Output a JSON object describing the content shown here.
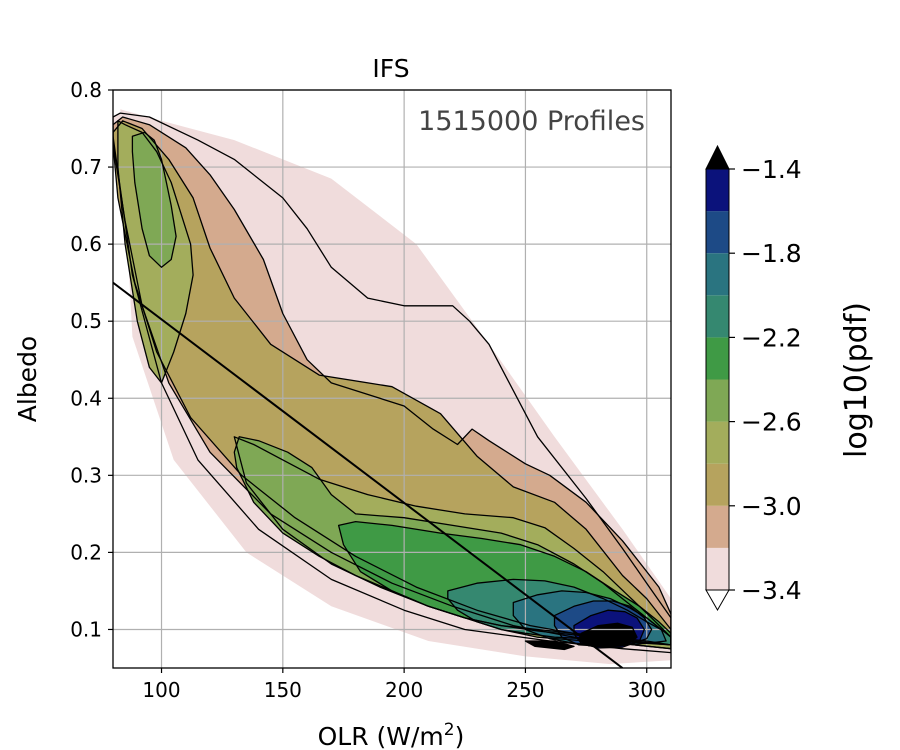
{
  "chart_data": {
    "type": "contour",
    "title": "IFS",
    "annotation": "1515000 Profiles",
    "xlabel": "OLR (W/m",
    "xlabel_sup": "2",
    "xlabel_end": ")",
    "ylabel": "Albedo",
    "xlim": [
      80,
      310
    ],
    "ylim": [
      0.05,
      0.8
    ],
    "x_ticks": [
      100,
      150,
      200,
      250,
      300
    ],
    "y_ticks": [
      0.1,
      0.2,
      0.3,
      0.4,
      0.5,
      0.6,
      0.7,
      0.8
    ],
    "x_tick_labels": [
      "100",
      "150",
      "200",
      "250",
      "300"
    ],
    "y_tick_labels": [
      "0.1",
      "0.2",
      "0.3",
      "0.4",
      "0.5",
      "0.6",
      "0.7",
      "0.8"
    ],
    "grid": true,
    "colorbar": {
      "label": "log10(pdf)",
      "levels": [
        -3.4,
        -3.2,
        -3.0,
        -2.8,
        -2.6,
        -2.4,
        -2.2,
        -2.0,
        -1.8,
        -1.6,
        -1.4
      ],
      "tick_values": [
        -3.4,
        -3.0,
        -2.6,
        -2.2,
        -1.8,
        -1.4
      ],
      "tick_labels": [
        "−3.4",
        "−3.0",
        "−2.6",
        "−2.2",
        "−1.8",
        "−1.4"
      ],
      "colors": [
        "#f0dcdc",
        "#d4aa8e",
        "#b6a35e",
        "#a3ad5c",
        "#7fa855",
        "#3f9a45",
        "#358870",
        "#2a7480",
        "#1d4a86",
        "#0b127b"
      ],
      "extend": "both",
      "over_color": "#000000",
      "under_color": "#ffffff"
    },
    "contour_levels": [
      {
        "level": -3.4,
        "color": "#f0dcdc",
        "outline": false,
        "x": [
          83,
          100,
          130,
          170,
          205,
          235,
          262,
          290,
          310,
          310,
          285,
          250,
          210,
          170,
          135,
          105,
          88
        ],
        "y": [
          0.775,
          0.76,
          0.735,
          0.685,
          0.6,
          0.47,
          0.35,
          0.23,
          0.14,
          0.06,
          0.055,
          0.065,
          0.085,
          0.13,
          0.2,
          0.32,
          0.48
        ]
      },
      {
        "level": -3.2,
        "color": "#f0dcdc",
        "outline": true,
        "x": [
          80,
          83,
          95,
          115,
          130,
          150,
          160,
          170,
          185,
          200,
          220,
          227,
          235,
          245,
          255,
          275,
          290,
          300,
          310,
          310,
          290,
          260,
          225,
          200,
          170,
          140,
          115,
          100,
          88,
          80
        ],
        "y": [
          0.765,
          0.77,
          0.765,
          0.735,
          0.71,
          0.66,
          0.62,
          0.57,
          0.53,
          0.52,
          0.52,
          0.5,
          0.47,
          0.41,
          0.35,
          0.27,
          0.205,
          0.16,
          0.115,
          0.07,
          0.075,
          0.085,
          0.1,
          0.125,
          0.165,
          0.23,
          0.32,
          0.42,
          0.56,
          0.74
        ]
      },
      {
        "level": -3.0,
        "color": "#d4aa8e",
        "outline": true,
        "x": [
          80,
          84,
          95,
          110,
          120,
          130,
          142,
          150,
          160,
          170,
          200,
          212,
          222,
          228,
          235,
          250,
          260,
          275,
          290,
          305,
          310,
          310,
          295,
          270,
          245,
          220,
          195,
          170,
          145,
          120,
          103,
          92,
          85,
          80
        ],
        "y": [
          0.755,
          0.765,
          0.755,
          0.725,
          0.69,
          0.645,
          0.58,
          0.51,
          0.45,
          0.42,
          0.39,
          0.36,
          0.34,
          0.36,
          0.345,
          0.315,
          0.3,
          0.265,
          0.215,
          0.155,
          0.12,
          0.075,
          0.08,
          0.09,
          0.105,
          0.13,
          0.16,
          0.2,
          0.25,
          0.33,
          0.42,
          0.52,
          0.63,
          0.73
        ]
      },
      {
        "level": -2.8,
        "color": "#b6a35e",
        "outline": true,
        "x": [
          80,
          84,
          92,
          103,
          113,
          120,
          130,
          145,
          165,
          195,
          215,
          230,
          245,
          262,
          275,
          290,
          300,
          310,
          310,
          295,
          275,
          252,
          230,
          205,
          180,
          155,
          133,
          112,
          98,
          89,
          82,
          80
        ],
        "y": [
          0.745,
          0.76,
          0.75,
          0.71,
          0.66,
          0.595,
          0.53,
          0.47,
          0.43,
          0.415,
          0.38,
          0.325,
          0.285,
          0.265,
          0.23,
          0.17,
          0.14,
          0.1,
          0.08,
          0.085,
          0.092,
          0.105,
          0.125,
          0.155,
          0.195,
          0.245,
          0.3,
          0.375,
          0.46,
          0.55,
          0.66,
          0.73
        ]
      },
      {
        "level": -2.6,
        "color": "#a3ad5c",
        "outline": true,
        "x": [
          82,
          85,
          92,
          98,
          104,
          108,
          112,
          113,
          110,
          105,
          100,
          95,
          90,
          85,
          82
        ],
        "y": [
          0.76,
          0.755,
          0.745,
          0.72,
          0.68,
          0.64,
          0.6,
          0.56,
          0.51,
          0.46,
          0.42,
          0.44,
          0.5,
          0.6,
          0.7
        ]
      },
      {
        "level": -2.6,
        "color": "#a3ad5c",
        "outline": true,
        "x": [
          130,
          138,
          150,
          165,
          185,
          205,
          225,
          245,
          258,
          270,
          282,
          292,
          302,
          310,
          310,
          295,
          275,
          255,
          240,
          225,
          210,
          190,
          170,
          150,
          135
        ],
        "y": [
          0.35,
          0.34,
          0.32,
          0.295,
          0.275,
          0.26,
          0.25,
          0.245,
          0.232,
          0.205,
          0.175,
          0.145,
          0.115,
          0.09,
          0.075,
          0.08,
          0.085,
          0.09,
          0.1,
          0.115,
          0.13,
          0.155,
          0.185,
          0.23,
          0.29
        ]
      },
      {
        "level": -2.4,
        "color": "#7fa855",
        "outline": true,
        "x": [
          88,
          93,
          97,
          100,
          102,
          104,
          106,
          104,
          100,
          95,
          92,
          89,
          88
        ],
        "y": [
          0.74,
          0.745,
          0.735,
          0.71,
          0.68,
          0.65,
          0.61,
          0.58,
          0.57,
          0.585,
          0.62,
          0.68,
          0.72
        ]
      },
      {
        "level": -2.4,
        "color": "#7fa855",
        "outline": true,
        "x": [
          130,
          132,
          140,
          152,
          162,
          170,
          180,
          200,
          220,
          240,
          255,
          270,
          282,
          292,
          300,
          308,
          310,
          310,
          300,
          285,
          270,
          255,
          240,
          225,
          210,
          195,
          180,
          165,
          150,
          138,
          131
        ],
        "y": [
          0.33,
          0.35,
          0.345,
          0.33,
          0.31,
          0.275,
          0.25,
          0.245,
          0.235,
          0.225,
          0.21,
          0.185,
          0.16,
          0.135,
          0.115,
          0.095,
          0.09,
          0.08,
          0.085,
          0.09,
          0.095,
          0.1,
          0.105,
          0.115,
          0.13,
          0.15,
          0.17,
          0.195,
          0.225,
          0.265,
          0.31
        ]
      },
      {
        "level": -2.2,
        "color": "#3f9a45",
        "outline": true,
        "x": [
          173,
          180,
          195,
          215,
          232,
          248,
          262,
          275,
          287,
          297,
          305,
          310,
          310,
          298,
          285,
          270,
          255,
          240,
          225,
          210,
          195,
          182,
          175
        ],
        "y": [
          0.235,
          0.24,
          0.235,
          0.225,
          0.218,
          0.21,
          0.195,
          0.175,
          0.15,
          0.13,
          0.11,
          0.095,
          0.08,
          0.083,
          0.088,
          0.093,
          0.098,
          0.105,
          0.115,
          0.13,
          0.15,
          0.175,
          0.21
        ]
      },
      {
        "level": -2.0,
        "color": "#358870",
        "outline": true,
        "x": [
          218,
          230,
          245,
          258,
          270,
          282,
          292,
          300,
          307,
          310,
          310,
          300,
          288,
          275,
          262,
          250,
          240,
          230,
          222,
          218
        ],
        "y": [
          0.15,
          0.16,
          0.165,
          0.163,
          0.155,
          0.14,
          0.125,
          0.11,
          0.098,
          0.09,
          0.08,
          0.082,
          0.085,
          0.088,
          0.09,
          0.095,
          0.1,
          0.11,
          0.125,
          0.14
        ]
      },
      {
        "level": -1.8,
        "color": "#2a7480",
        "outline": true,
        "x": [
          245,
          255,
          265,
          275,
          285,
          293,
          300,
          306,
          308,
          300,
          290,
          280,
          270,
          260,
          250,
          245
        ],
        "y": [
          0.135,
          0.145,
          0.15,
          0.148,
          0.14,
          0.128,
          0.115,
          0.1,
          0.085,
          0.082,
          0.08,
          0.08,
          0.082,
          0.088,
          0.1,
          0.118
        ]
      },
      {
        "level": -1.6,
        "color": "#1d4a86",
        "outline": true,
        "x": [
          262,
          270,
          278,
          286,
          293,
          299,
          302,
          300,
          292,
          282,
          272,
          265,
          262
        ],
        "y": [
          0.118,
          0.13,
          0.137,
          0.137,
          0.13,
          0.115,
          0.1,
          0.088,
          0.08,
          0.078,
          0.08,
          0.09,
          0.105
        ]
      },
      {
        "level": -1.4,
        "color": "#0b127b",
        "outline": true,
        "x": [
          270,
          277,
          284,
          291,
          296,
          299,
          297,
          290,
          280,
          273,
          270
        ],
        "y": [
          0.105,
          0.118,
          0.125,
          0.123,
          0.115,
          0.1,
          0.085,
          0.077,
          0.076,
          0.082,
          0.094
        ]
      },
      {
        "level": -1.3,
        "color": "#000000",
        "outline": true,
        "x": [
          273,
          280,
          288,
          294,
          296,
          292,
          284,
          276,
          272
        ],
        "y": [
          0.095,
          0.105,
          0.108,
          0.103,
          0.09,
          0.08,
          0.077,
          0.079,
          0.086
        ]
      },
      {
        "level": -1.3,
        "color": "#000000",
        "outline": true,
        "x": [
          250,
          262,
          270,
          266,
          254
        ],
        "y": [
          0.085,
          0.085,
          0.078,
          0.074,
          0.078
        ]
      }
    ],
    "line": {
      "x": [
        80,
        290
      ],
      "y": [
        0.55,
        0.05
      ],
      "color": "#000000"
    }
  }
}
